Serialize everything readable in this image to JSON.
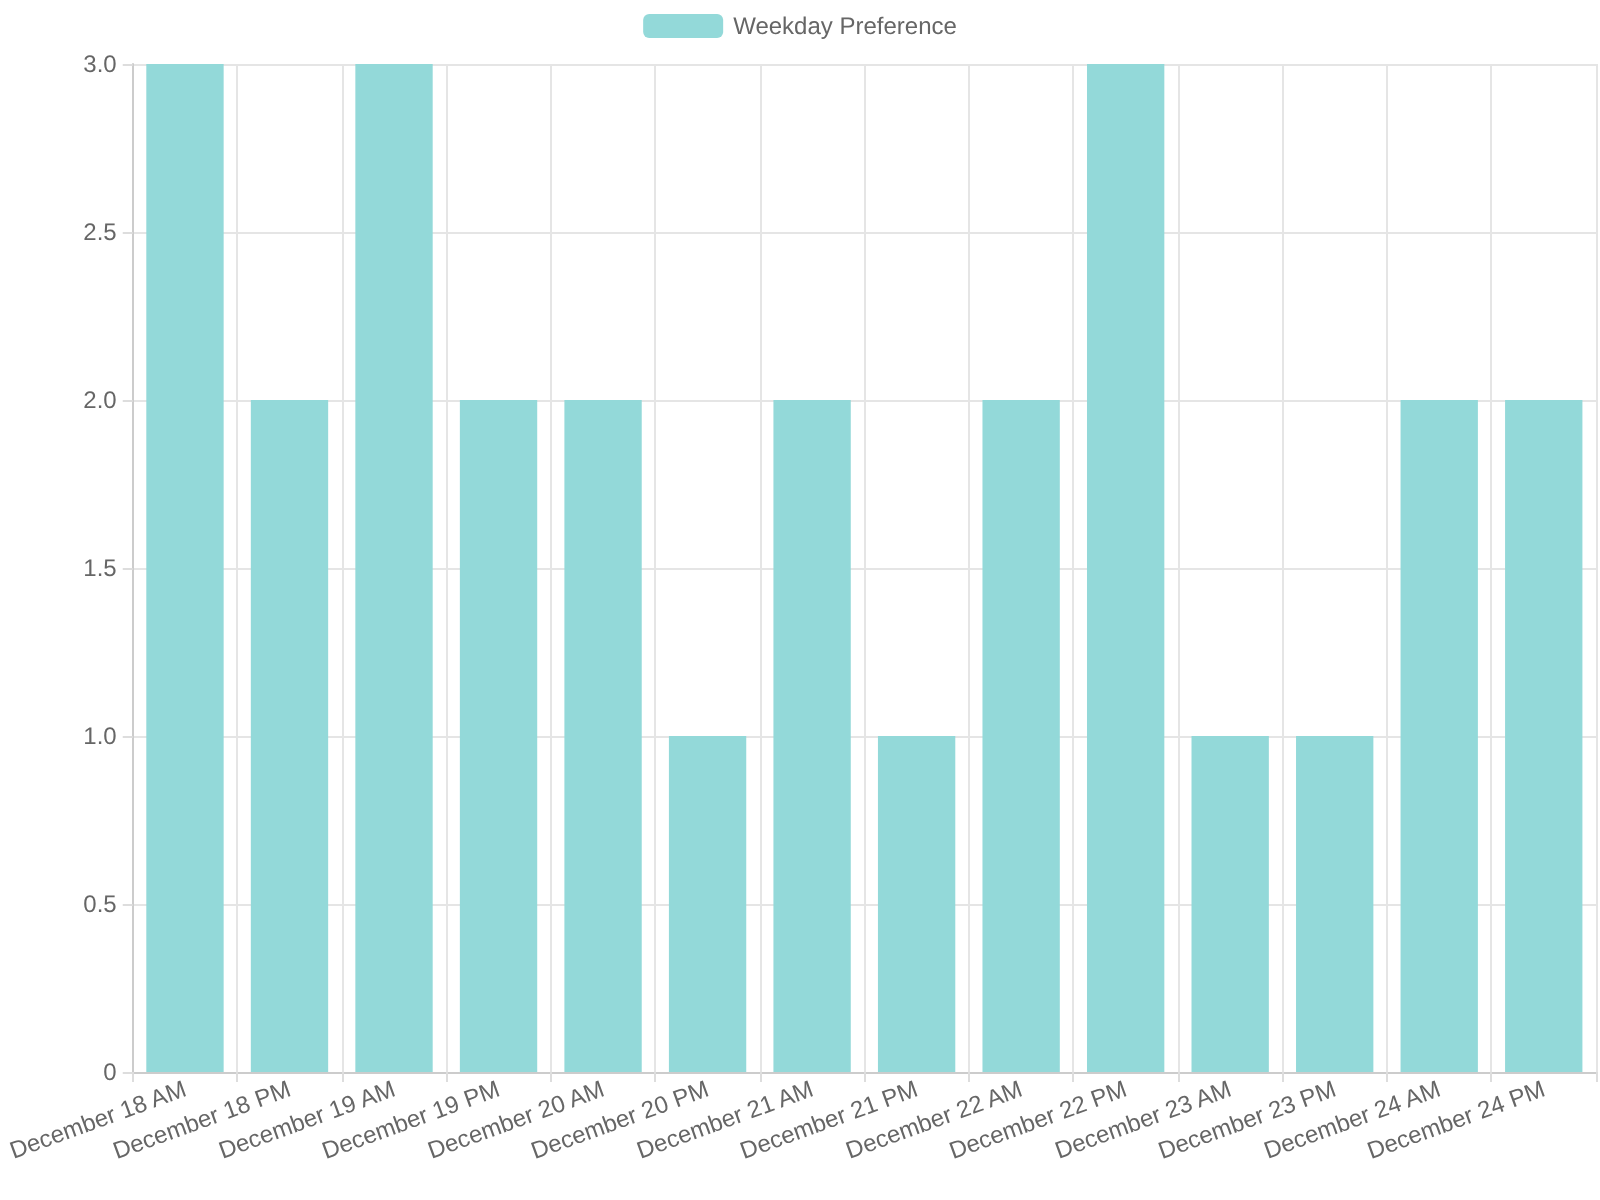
{
  "chart_data": {
    "type": "bar",
    "categories": [
      "December 18 AM",
      "December 18 PM",
      "December 19 AM",
      "December 19 PM",
      "December 20 AM",
      "December 20 PM",
      "December 21 AM",
      "December 21 PM",
      "December 22 AM",
      "December 22 PM",
      "December 23 AM",
      "December 23 PM",
      "December 24 AM",
      "December 24 PM"
    ],
    "series": [
      {
        "name": "Weekday Preference",
        "color": "#93d9d9",
        "values": [
          3,
          2,
          3,
          2,
          2,
          1,
          2,
          1,
          2,
          3,
          1,
          1,
          2,
          2
        ]
      }
    ],
    "ylim": [
      0,
      3
    ],
    "yticks": [
      0,
      0.5,
      {
        "value": 1,
        "label": "1.0"
      },
      1.5,
      {
        "value": 2,
        "label": "2.0"
      },
      2.5,
      {
        "value": 3,
        "label": "3.0"
      }
    ],
    "grid": true,
    "legend": "top"
  }
}
